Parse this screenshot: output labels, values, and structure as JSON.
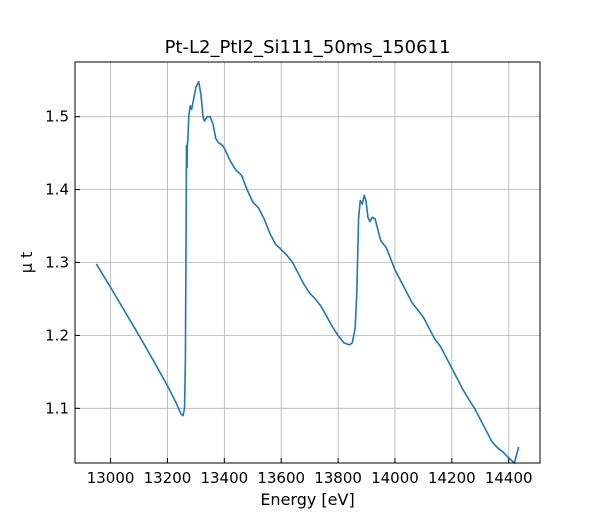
{
  "chart_data": {
    "type": "line",
    "title": "Pt-L2_PtI2_Si111_50ms_150611",
    "xlabel": "Energy [eV]",
    "ylabel": "μ t",
    "xlim": [
      12875,
      14510
    ],
    "ylim": [
      1.025,
      1.575
    ],
    "xticks": [
      13000,
      13200,
      13400,
      13600,
      13800,
      14000,
      14200,
      14400
    ],
    "yticks": [
      1.1,
      1.2,
      1.3,
      1.4,
      1.5
    ],
    "xtick_labels": [
      "13000",
      "13200",
      "13400",
      "13600",
      "13800",
      "14000",
      "14200",
      "14400"
    ],
    "ytick_labels": [
      "1.1",
      "1.2",
      "1.3",
      "1.4",
      "1.5"
    ],
    "grid": true,
    "colors": {
      "line": "#1f77b4",
      "grid": "#b0b0b0",
      "axes": "#000000"
    },
    "series": [
      {
        "x": [
          12950,
          13000,
          13050,
          13100,
          13150,
          13200,
          13230,
          13248,
          13255,
          13260,
          13263,
          13265,
          13267,
          13268,
          13269,
          13270,
          13272,
          13275,
          13280,
          13285,
          13290,
          13300,
          13310,
          13318,
          13325,
          13330,
          13340,
          13350,
          13360,
          13370,
          13380,
          13390,
          13400,
          13420,
          13440,
          13460,
          13480,
          13500,
          13520,
          13540,
          13560,
          13580,
          13600,
          13620,
          13640,
          13660,
          13680,
          13700,
          13720,
          13740,
          13760,
          13780,
          13800,
          13820,
          13840,
          13850,
          13860,
          13866,
          13872,
          13878,
          13885,
          13892,
          13898,
          13905,
          13912,
          13920,
          13930,
          13940,
          13950,
          13960,
          13970,
          13985,
          14000,
          14020,
          14040,
          14060,
          14080,
          14100,
          14120,
          14140,
          14160,
          14180,
          14200,
          14220,
          14240,
          14260,
          14280,
          14300,
          14320,
          14340,
          14360,
          14380,
          14400,
          14420,
          14435
        ],
        "y": [
          1.298,
          1.266,
          1.233,
          1.2,
          1.166,
          1.131,
          1.108,
          1.092,
          1.09,
          1.1,
          1.16,
          1.3,
          1.46,
          1.45,
          1.43,
          1.46,
          1.47,
          1.5,
          1.515,
          1.51,
          1.52,
          1.54,
          1.548,
          1.53,
          1.5,
          1.494,
          1.5,
          1.5,
          1.49,
          1.47,
          1.464,
          1.462,
          1.457,
          1.44,
          1.427,
          1.42,
          1.4,
          1.383,
          1.375,
          1.36,
          1.34,
          1.325,
          1.318,
          1.31,
          1.3,
          1.285,
          1.27,
          1.258,
          1.25,
          1.24,
          1.226,
          1.212,
          1.2,
          1.19,
          1.187,
          1.19,
          1.21,
          1.26,
          1.36,
          1.385,
          1.38,
          1.392,
          1.385,
          1.362,
          1.356,
          1.362,
          1.36,
          1.345,
          1.33,
          1.325,
          1.32,
          1.305,
          1.29,
          1.275,
          1.26,
          1.245,
          1.235,
          1.225,
          1.21,
          1.195,
          1.185,
          1.17,
          1.155,
          1.14,
          1.125,
          1.112,
          1.1,
          1.085,
          1.07,
          1.055,
          1.046,
          1.04,
          1.032,
          1.025,
          1.047
        ]
      }
    ]
  }
}
